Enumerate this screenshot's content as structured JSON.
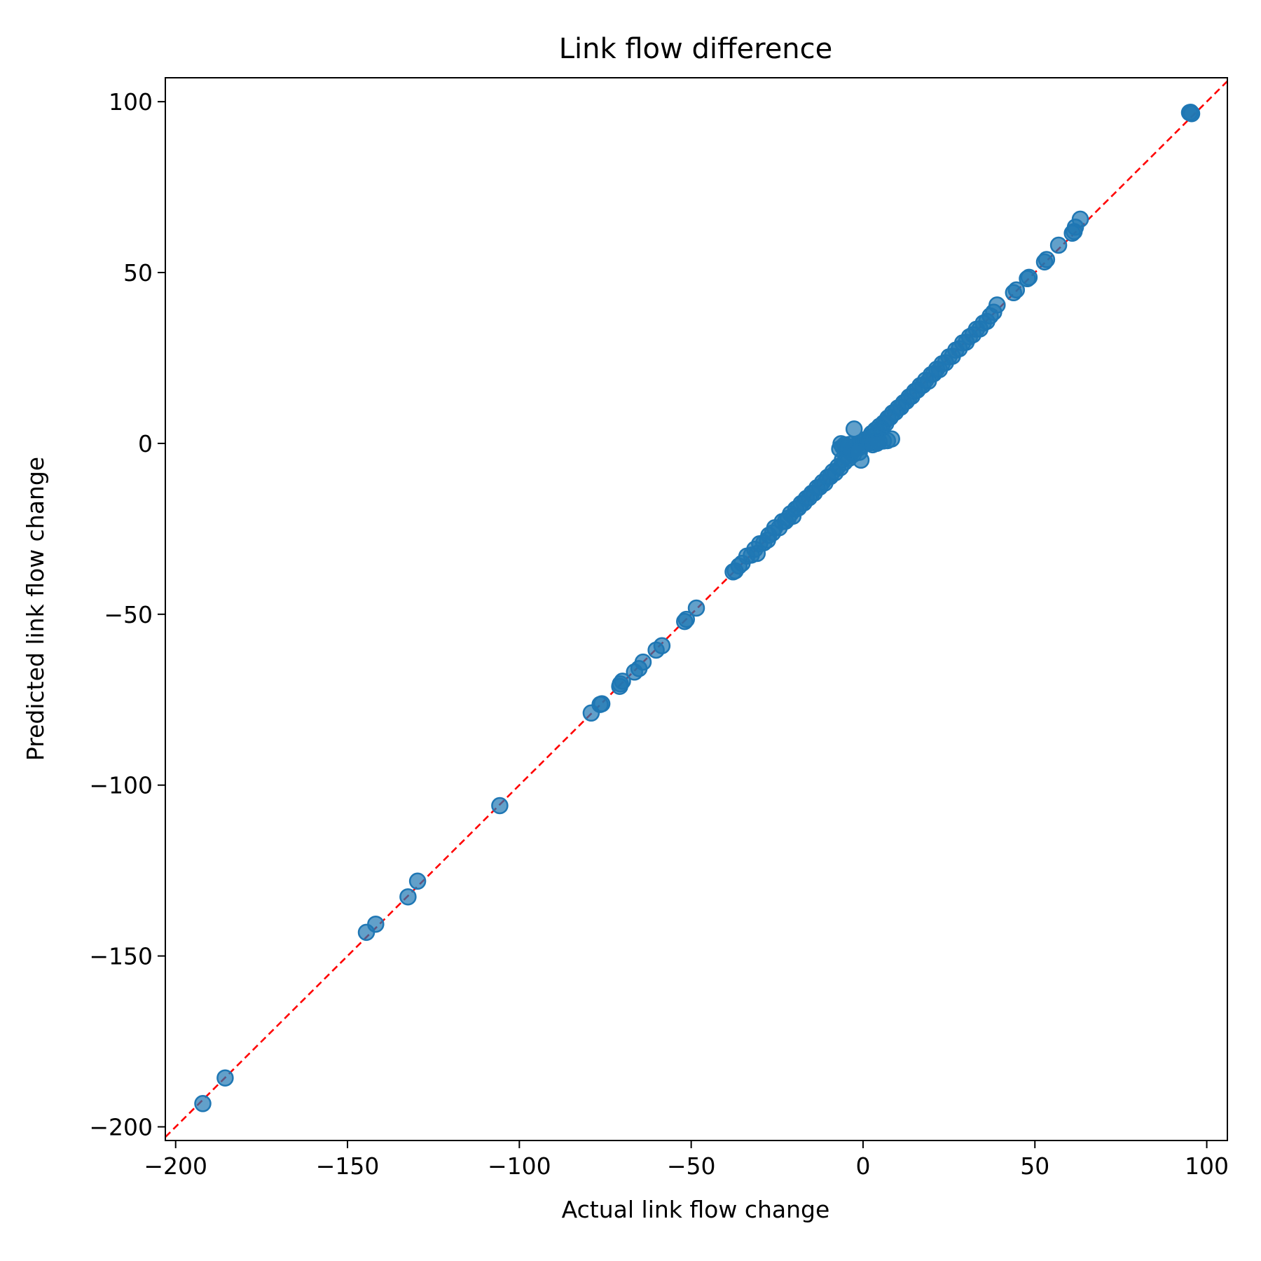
{
  "chart_data": {
    "type": "scatter",
    "title": "Link flow difference",
    "xlabel": "Actual link flow change",
    "ylabel": "Predicted link flow change",
    "xlim": [
      -203,
      106
    ],
    "ylim": [
      -204,
      107
    ],
    "xticks": [
      -200,
      -150,
      -100,
      -50,
      0,
      50,
      100
    ],
    "yticks": [
      -200,
      -150,
      -100,
      -50,
      0,
      50,
      100
    ],
    "xtick_labels": [
      "−200",
      "−150",
      "−100",
      "−50",
      "0",
      "50",
      "100"
    ],
    "ytick_labels": [
      "−200",
      "−150",
      "−100",
      "−50",
      "0",
      "50",
      "100"
    ],
    "grid": false,
    "legend": "none",
    "colors": {
      "points": "#1f77b4",
      "reference_line": "#ff0000"
    },
    "reference_line": {
      "style": "dashed",
      "from": [
        -203,
        -203
      ],
      "to": [
        106,
        106
      ]
    },
    "series": [
      {
        "points": [
          [
            -192.1,
            -193.2
          ],
          [
            -185.6,
            -185.7
          ],
          [
            -144.5,
            -143.1
          ],
          [
            -141.8,
            -140.7
          ],
          [
            -132.4,
            -132.7
          ],
          [
            -129.6,
            -128.1
          ],
          [
            -105.7,
            -106.0
          ],
          [
            -79.1,
            -78.9
          ],
          [
            -76.5,
            -76.4
          ],
          [
            -76.0,
            -76.2
          ],
          [
            -70.6,
            -70.4
          ],
          [
            -70.0,
            -69.6
          ],
          [
            -70.8,
            -71.1
          ],
          [
            -66.5,
            -66.9
          ],
          [
            -65.2,
            -65.9
          ],
          [
            -64.0,
            -64.0
          ],
          [
            -60.2,
            -60.5
          ],
          [
            -58.5,
            -59.2
          ],
          [
            -51.9,
            -52.1
          ],
          [
            -51.4,
            -51.5
          ],
          [
            -48.5,
            -48.2
          ],
          [
            -37.8,
            -37.6
          ],
          [
            -37.2,
            -37.3
          ],
          [
            -36.1,
            -35.9
          ],
          [
            -35.2,
            -35.1
          ],
          [
            -33.8,
            -33.0
          ],
          [
            -32.5,
            -32.7
          ],
          [
            -31.5,
            -31.0
          ],
          [
            -30.8,
            -32.2
          ],
          [
            -30.1,
            -29.4
          ],
          [
            -28.9,
            -29.1
          ],
          [
            -27.8,
            -28.3
          ],
          [
            -27.4,
            -26.9
          ],
          [
            -26.3,
            -26.2
          ],
          [
            -25.7,
            -24.7
          ],
          [
            -24.4,
            -24.7
          ],
          [
            -23.5,
            -22.9
          ],
          [
            -22.6,
            -22.8
          ],
          [
            -21.8,
            -21.9
          ],
          [
            -21.1,
            -20.6
          ],
          [
            -20.4,
            -21.3
          ],
          [
            -19.6,
            -19.2
          ],
          [
            -18.8,
            -18.9
          ],
          [
            -18.0,
            -17.6
          ],
          [
            -17.2,
            -17.4
          ],
          [
            -16.5,
            -16.1
          ],
          [
            -15.7,
            -15.9
          ],
          [
            -14.9,
            -14.6
          ],
          [
            -14.2,
            -14.5
          ],
          [
            -13.4,
            -13.0
          ],
          [
            -12.6,
            -12.8
          ],
          [
            -11.8,
            -11.4
          ],
          [
            -11.1,
            -11.6
          ],
          [
            -10.3,
            -9.9
          ],
          [
            -9.5,
            -9.7
          ],
          [
            -8.8,
            -8.3
          ],
          [
            -8.1,
            -8.6
          ],
          [
            -7.3,
            -6.8
          ],
          [
            -6.6,
            -7.1
          ],
          [
            -6.0,
            -4.8
          ],
          [
            -5.4,
            -5.5
          ],
          [
            -4.7,
            -3.9
          ],
          [
            -4.1,
            -4.4
          ],
          [
            -3.4,
            -2.8
          ],
          [
            -2.8,
            -3.2
          ],
          [
            -6.8,
            -1.6
          ],
          [
            -6.4,
            -0.1
          ],
          [
            -5.9,
            -1.0
          ],
          [
            -5.3,
            -0.4
          ],
          [
            -4.6,
            -0.9
          ],
          [
            -3.9,
            -0.3
          ],
          [
            -3.2,
            -1.6
          ],
          [
            -2.5,
            -0.8
          ],
          [
            -2.6,
            4.2
          ],
          [
            -1.9,
            -0.6
          ],
          [
            -1.3,
            -1.3
          ],
          [
            -0.7,
            0.2
          ],
          [
            -0.2,
            -0.5
          ],
          [
            0.4,
            0.6
          ],
          [
            0.9,
            1.2
          ],
          [
            1.4,
            0.4
          ],
          [
            -0.6,
            -4.9
          ],
          [
            -1.1,
            -2.6
          ],
          [
            1.9,
            1.8
          ],
          [
            2.5,
            2.9
          ],
          [
            3.1,
            2.2
          ],
          [
            3.6,
            3.9
          ],
          [
            4.2,
            3.4
          ],
          [
            4.8,
            5.0
          ],
          [
            5.4,
            4.5
          ],
          [
            6.0,
            6.0
          ],
          [
            6.6,
            5.8
          ],
          [
            7.2,
            7.4
          ],
          [
            2.2,
            0.2
          ],
          [
            3.4,
            0.3
          ],
          [
            4.7,
            0.5
          ],
          [
            5.9,
            0.7
          ],
          [
            7.1,
            0.8
          ],
          [
            8.3,
            1.3
          ],
          [
            2.8,
            -0.4
          ],
          [
            4.0,
            0.0
          ],
          [
            7.9,
            7.6
          ],
          [
            8.6,
            8.9
          ],
          [
            9.4,
            9.1
          ],
          [
            10.2,
            10.4
          ],
          [
            11.0,
            10.6
          ],
          [
            11.8,
            11.9
          ],
          [
            12.6,
            12.3
          ],
          [
            13.4,
            13.6
          ],
          [
            14.2,
            13.8
          ],
          [
            15.0,
            15.2
          ],
          [
            15.8,
            15.6
          ],
          [
            16.6,
            16.9
          ],
          [
            17.4,
            17.0
          ],
          [
            18.2,
            18.5
          ],
          [
            19.0,
            18.2
          ],
          [
            19.8,
            20.1
          ],
          [
            20.6,
            20.4
          ],
          [
            21.4,
            21.7
          ],
          [
            22.2,
            21.6
          ],
          [
            23.0,
            23.3
          ],
          [
            24.0,
            23.6
          ],
          [
            25.0,
            25.3
          ],
          [
            26.0,
            25.5
          ],
          [
            27.0,
            27.3
          ],
          [
            28.0,
            27.7
          ],
          [
            29.0,
            29.4
          ],
          [
            30.0,
            29.6
          ],
          [
            31.0,
            31.2
          ],
          [
            32.0,
            31.8
          ],
          [
            33.0,
            33.4
          ],
          [
            34.0,
            33.5
          ],
          [
            35.0,
            35.2
          ],
          [
            36.0,
            35.7
          ],
          [
            37.0,
            37.3
          ],
          [
            38.0,
            38.4
          ],
          [
            39.0,
            40.5
          ],
          [
            43.8,
            44.1
          ],
          [
            44.6,
            44.9
          ],
          [
            47.8,
            48.2
          ],
          [
            48.3,
            48.6
          ],
          [
            52.8,
            53.1
          ],
          [
            53.4,
            53.8
          ],
          [
            56.9,
            58.0
          ],
          [
            60.9,
            61.5
          ],
          [
            61.4,
            62.0
          ],
          [
            61.8,
            63.3
          ],
          [
            63.2,
            65.6
          ],
          [
            95.0,
            96.8
          ],
          [
            95.3,
            96.9
          ],
          [
            95.6,
            96.5
          ]
        ]
      }
    ]
  }
}
